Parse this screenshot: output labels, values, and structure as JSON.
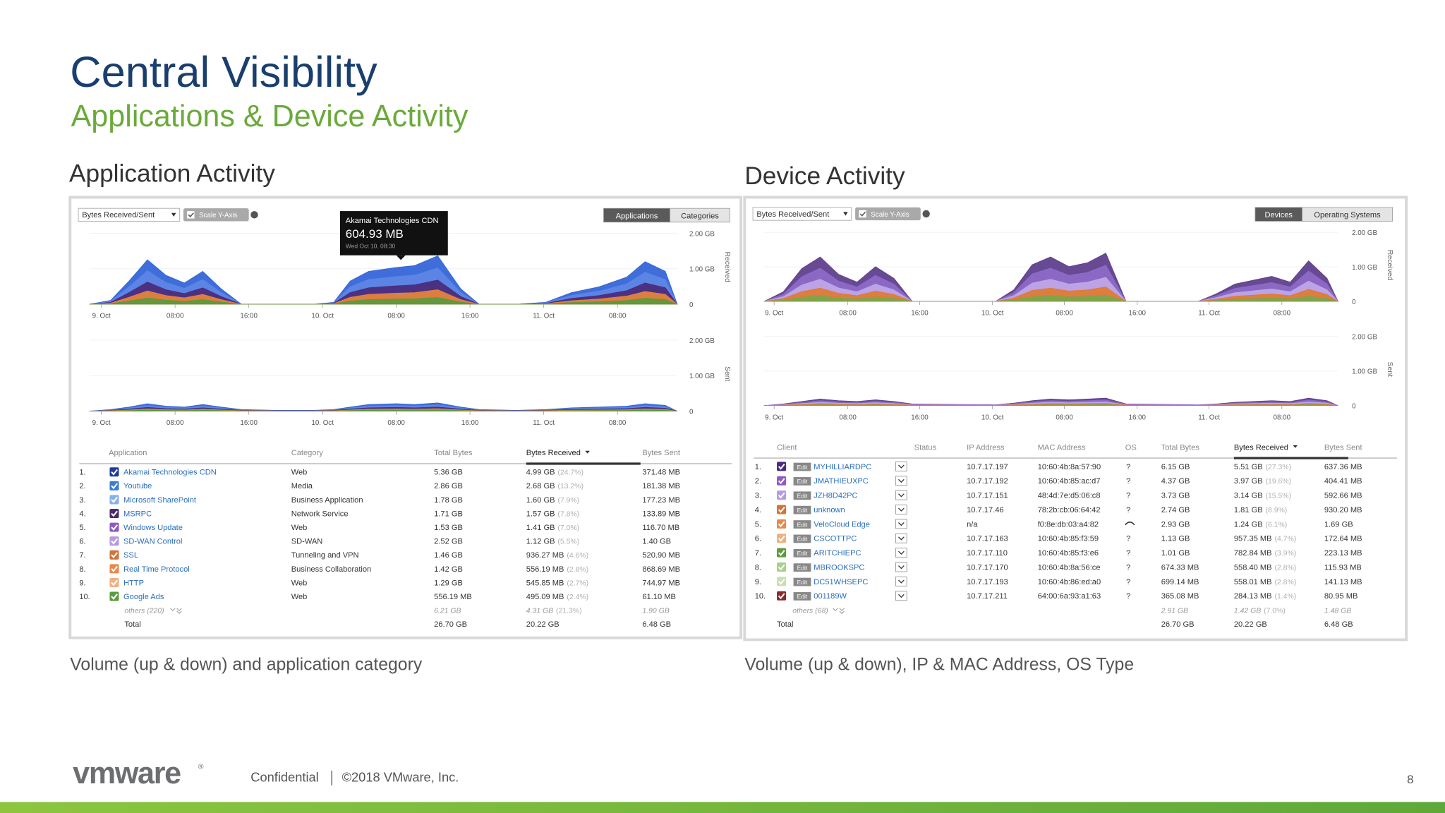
{
  "header": {
    "title": "Central Visibility",
    "subtitle": "Applications & Device Activity"
  },
  "app_activity": {
    "heading": "Application Activity",
    "caption": "Volume (up & down) and application category",
    "metric_dropdown": "Bytes Received/Sent",
    "scale_toggle": "Scale Y-Axis",
    "tabs": [
      "Applications",
      "Categories"
    ],
    "tooltip": {
      "title": "Akamai Technologies CDN",
      "value": "604.93 MB",
      "date": "Wed Oct 10, 08:30"
    },
    "axis_received": "Received",
    "axis_sent": "Sent",
    "y_ticks": [
      "2.00 GB",
      "1.00 GB",
      "0"
    ],
    "x_labels": [
      "9. Oct",
      "08:00",
      "16:00",
      "10. Oct",
      "08:00",
      "16:00",
      "11. Oct",
      "08:00"
    ],
    "columns": [
      "Application",
      "Category",
      "Total Bytes",
      "Bytes Received",
      "Bytes Sent"
    ],
    "rows": [
      {
        "n": "1.",
        "name": "Akamai Technologies CDN",
        "category": "Web",
        "total": "5.36 GB",
        "received": "4.99 GB",
        "pct": "(24.7%)",
        "sent": "371.48 MB",
        "color": "#1f3c99"
      },
      {
        "n": "2.",
        "name": "Youtube",
        "category": "Media",
        "total": "2.86 GB",
        "received": "2.68 GB",
        "pct": "(13.2%)",
        "sent": "181.38 MB",
        "color": "#3a7bd5"
      },
      {
        "n": "3.",
        "name": "Microsoft SharePoint",
        "category": "Business Application",
        "total": "1.78 GB",
        "received": "1.60 GB",
        "pct": "(7.9%)",
        "sent": "177.23 MB",
        "color": "#8ab0e8"
      },
      {
        "n": "4.",
        "name": "MSRPC",
        "category": "Network Service",
        "total": "1.71 GB",
        "received": "1.57 GB",
        "pct": "(7.8%)",
        "sent": "133.89 MB",
        "color": "#4b2a6a"
      },
      {
        "n": "5.",
        "name": "Windows Update",
        "category": "Web",
        "total": "1.53 GB",
        "received": "1.41 GB",
        "pct": "(7.0%)",
        "sent": "116.70 MB",
        "color": "#8e5bc4"
      },
      {
        "n": "6.",
        "name": "SD-WAN Control",
        "category": "SD-WAN",
        "total": "2.52 GB",
        "received": "1.12 GB",
        "pct": "(5.5%)",
        "sent": "1.40 GB",
        "color": "#b79be0"
      },
      {
        "n": "7.",
        "name": "SSL",
        "category": "Tunneling and VPN",
        "total": "1.46 GB",
        "received": "936.27 MB",
        "pct": "(4.6%)",
        "sent": "520.90 MB",
        "color": "#d0743a"
      },
      {
        "n": "8.",
        "name": "Real Time Protocol",
        "category": "Business Collaboration",
        "total": "1.42 GB",
        "received": "556.19 MB",
        "pct": "(2.8%)",
        "sent": "868.69 MB",
        "color": "#e8884a"
      },
      {
        "n": "9.",
        "name": "HTTP",
        "category": "Web",
        "total": "1.29 GB",
        "received": "545.85 MB",
        "pct": "(2.7%)",
        "sent": "744.97 MB",
        "color": "#f0b080"
      },
      {
        "n": "10.",
        "name": "Google Ads",
        "category": "Web",
        "total": "556.19 MB",
        "received": "495.09 MB",
        "pct": "(2.4%)",
        "sent": "61.10 MB",
        "color": "#5d9b3c"
      }
    ],
    "others": {
      "label": "others (220)",
      "total": "6.21 GB",
      "received": "4.31 GB",
      "pct": "(21.3%)",
      "sent": "1.90 GB"
    },
    "total_row": {
      "label": "Total",
      "total": "26.70 GB",
      "received": "20.22 GB",
      "sent": "6.48 GB"
    }
  },
  "device_activity": {
    "heading": "Device Activity",
    "caption": "Volume (up & down), IP & MAC Address, OS Type",
    "metric_dropdown": "Bytes Received/Sent",
    "scale_toggle": "Scale Y-Axis",
    "tabs": [
      "Devices",
      "Operating Systems"
    ],
    "axis_received": "Received",
    "axis_sent": "Sent",
    "y_ticks": [
      "2.00 GB",
      "1.00 GB",
      "0"
    ],
    "x_labels": [
      "9. Oct",
      "08:00",
      "16:00",
      "10. Oct",
      "08:00",
      "16:00",
      "11. Oct",
      "08:00"
    ],
    "columns": [
      "Client",
      "Status",
      "IP Address",
      "MAC Address",
      "OS",
      "Total Bytes",
      "Bytes Received",
      "Bytes Sent"
    ],
    "edit_label": "Edit",
    "rows": [
      {
        "n": "1.",
        "name": "MYHILLIARDPC",
        "ip": "10.7.17.197",
        "mac": "10:60:4b:8a:57:90",
        "os": "?",
        "total": "6.15 GB",
        "received": "5.51 GB",
        "pct": "(27.3%)",
        "sent": "637.36 MB",
        "color": "#4b2a7a"
      },
      {
        "n": "2.",
        "name": "JMATHIEUXPC",
        "ip": "10.7.17.192",
        "mac": "10:60:4b:85:ac:d7",
        "os": "?",
        "total": "4.37 GB",
        "received": "3.97 GB",
        "pct": "(19.6%)",
        "sent": "404.41 MB",
        "color": "#8e5bc4"
      },
      {
        "n": "3.",
        "name": "JZH8D42PC",
        "ip": "10.7.17.151",
        "mac": "48:4d:7e:d5:06:c8",
        "os": "?",
        "total": "3.73 GB",
        "received": "3.14 GB",
        "pct": "(15.5%)",
        "sent": "592.66 MB",
        "color": "#b79be0"
      },
      {
        "n": "4.",
        "name": "unknown",
        "ip": "10.7.17.46",
        "mac": "78:2b:cb:06:64:42",
        "os": "?",
        "total": "2.74 GB",
        "received": "1.81 GB",
        "pct": "(8.9%)",
        "sent": "930.20 MB",
        "color": "#d0743a"
      },
      {
        "n": "5.",
        "name": "VeloCloud Edge",
        "ip": "n/a",
        "mac": "f0:8e:db:03:a4:82",
        "total": "2.93 GB",
        "received": "1.24 GB",
        "pct": "(6.1%)",
        "sent": "1.69 GB",
        "color": "#e8884a"
      },
      {
        "n": "6.",
        "name": "CSCOTTPC",
        "ip": "10.7.17.163",
        "mac": "10:60:4b:85:f3:59",
        "os": "?",
        "total": "1.13 GB",
        "received": "957.35 MB",
        "pct": "(4.7%)",
        "sent": "172.64 MB",
        "color": "#f0b080"
      },
      {
        "n": "7.",
        "name": "ARITCHIEPC",
        "ip": "10.7.17.110",
        "mac": "10:60:4b:85:f3:e6",
        "os": "?",
        "total": "1.01 GB",
        "received": "782.84 MB",
        "pct": "(3.9%)",
        "sent": "223.13 MB",
        "color": "#5d9b3c"
      },
      {
        "n": "8.",
        "name": "MBROOKSPC",
        "ip": "10.7.17.170",
        "mac": "10:60:4b:8a:56:ce",
        "os": "?",
        "total": "674.33 MB",
        "received": "558.40 MB",
        "pct": "(2.8%)",
        "sent": "115.93 MB",
        "color": "#a8d08a"
      },
      {
        "n": "9.",
        "name": "DC51WHSEPC",
        "ip": "10.7.17.193",
        "mac": "10:60:4b:86:ed:a0",
        "os": "?",
        "total": "699.14 MB",
        "received": "558.01 MB",
        "pct": "(2.8%)",
        "sent": "141.13 MB",
        "color": "#c8e0b0"
      },
      {
        "n": "10.",
        "name": "001189W",
        "ip": "10.7.17.211",
        "mac": "64:00:6a:93:a1:63",
        "os": "?",
        "total": "365.08 MB",
        "received": "284.13 MB",
        "pct": "(1.4%)",
        "sent": "80.95 MB",
        "color": "#8a2a2a"
      }
    ],
    "others": {
      "label": "others (68)",
      "total": "2.91 GB",
      "received": "1.42 GB",
      "pct": "(7.0%)",
      "sent": "1.48 GB"
    },
    "total_row": {
      "label": "Total",
      "total": "26.70 GB",
      "received": "20.22 GB",
      "sent": "6.48 GB"
    }
  },
  "footer": {
    "logo": "vmware",
    "confidential": "Confidential",
    "copyright": "©2018 VMware, Inc.",
    "page": "8"
  }
}
